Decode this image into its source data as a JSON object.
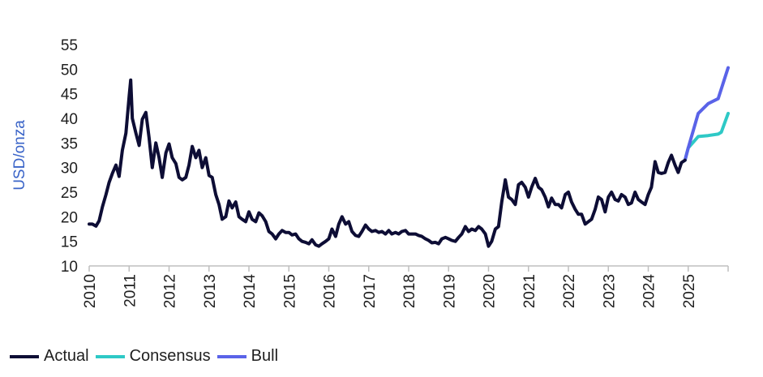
{
  "chart_data": {
    "type": "line",
    "title": "",
    "xlabel": "",
    "ylabel": "USD/onza",
    "ylim": [
      10,
      55
    ],
    "xlim": [
      2010,
      2026
    ],
    "yticks": [
      "10",
      "15",
      "20",
      "25",
      "30",
      "35",
      "40",
      "45",
      "50",
      "55"
    ],
    "xticks": [
      "2010",
      "2011",
      "2012",
      "2013",
      "2014",
      "2015",
      "2016",
      "2017",
      "2018",
      "2019",
      "2020",
      "2021",
      "2022",
      "2023",
      "2024",
      "2025"
    ],
    "colors": {
      "Actual": "#0d0d35",
      "Consensus": "#2ec9c6",
      "Bull": "#5a63e8",
      "ylabel": "#3a64c8",
      "axis": "#bfbfbf"
    },
    "series": [
      {
        "name": "Actual",
        "x": [
          2010.0,
          2010.08,
          2010.17,
          2010.25,
          2010.33,
          2010.42,
          2010.5,
          2010.58,
          2010.67,
          2010.75,
          2010.83,
          2010.92,
          2011.0,
          2011.04,
          2011.08,
          2011.17,
          2011.25,
          2011.33,
          2011.42,
          2011.5,
          2011.58,
          2011.67,
          2011.75,
          2011.83,
          2011.92,
          2012.0,
          2012.08,
          2012.17,
          2012.25,
          2012.33,
          2012.42,
          2012.5,
          2012.58,
          2012.67,
          2012.75,
          2012.83,
          2012.92,
          2013.0,
          2013.08,
          2013.17,
          2013.25,
          2013.33,
          2013.42,
          2013.5,
          2013.58,
          2013.67,
          2013.75,
          2013.83,
          2013.92,
          2014.0,
          2014.08,
          2014.17,
          2014.25,
          2014.33,
          2014.42,
          2014.5,
          2014.58,
          2014.67,
          2014.75,
          2014.83,
          2014.92,
          2015.0,
          2015.08,
          2015.17,
          2015.25,
          2015.33,
          2015.42,
          2015.5,
          2015.58,
          2015.67,
          2015.75,
          2015.83,
          2015.92,
          2016.0,
          2016.08,
          2016.17,
          2016.25,
          2016.33,
          2016.42,
          2016.5,
          2016.58,
          2016.67,
          2016.75,
          2016.83,
          2016.92,
          2017.0,
          2017.08,
          2017.17,
          2017.25,
          2017.33,
          2017.42,
          2017.5,
          2017.58,
          2017.67,
          2017.75,
          2017.83,
          2017.92,
          2018.0,
          2018.08,
          2018.17,
          2018.25,
          2018.33,
          2018.42,
          2018.5,
          2018.58,
          2018.67,
          2018.75,
          2018.83,
          2018.92,
          2019.0,
          2019.08,
          2019.17,
          2019.25,
          2019.33,
          2019.42,
          2019.5,
          2019.58,
          2019.67,
          2019.75,
          2019.83,
          2019.92,
          2020.0,
          2020.08,
          2020.17,
          2020.25,
          2020.33,
          2020.42,
          2020.5,
          2020.58,
          2020.67,
          2020.75,
          2020.83,
          2020.92,
          2021.0,
          2021.08,
          2021.17,
          2021.25,
          2021.33,
          2021.42,
          2021.5,
          2021.58,
          2021.67,
          2021.75,
          2021.83,
          2021.92,
          2022.0,
          2022.08,
          2022.17,
          2022.25,
          2022.33,
          2022.42,
          2022.5,
          2022.58,
          2022.67,
          2022.75,
          2022.83,
          2022.92,
          2023.0,
          2023.08,
          2023.17,
          2023.25,
          2023.33,
          2023.42,
          2023.5,
          2023.58,
          2023.67,
          2023.75,
          2023.83,
          2023.92,
          2024.0,
          2024.08,
          2024.17,
          2024.25,
          2024.33,
          2024.42,
          2024.5,
          2024.58,
          2024.67,
          2024.75,
          2024.83,
          2024.92
        ],
        "values": [
          18.5,
          18.5,
          18.1,
          19.2,
          22.0,
          24.5,
          27.0,
          28.8,
          30.5,
          28.2,
          33.5,
          37.0,
          44.5,
          47.8,
          40.0,
          37.0,
          34.5,
          39.8,
          41.2,
          36.0,
          30.0,
          35.0,
          32.0,
          28.0,
          33.0,
          34.8,
          32.0,
          30.8,
          28.0,
          27.5,
          28.0,
          30.5,
          34.3,
          32.0,
          33.5,
          30.0,
          32.0,
          28.4,
          28.0,
          24.5,
          22.5,
          19.5,
          20.0,
          23.2,
          21.8,
          23.0,
          20.0,
          19.5,
          19.0,
          21.0,
          19.5,
          19.0,
          20.8,
          20.2,
          19.0,
          17.0,
          16.5,
          15.5,
          16.5,
          17.2,
          16.8,
          16.8,
          16.3,
          16.5,
          15.5,
          15.0,
          14.8,
          14.5,
          15.3,
          14.3,
          14.0,
          14.5,
          15.0,
          15.5,
          17.5,
          16.0,
          18.5,
          20.0,
          18.5,
          19.0,
          17.0,
          16.2,
          16.0,
          17.0,
          18.3,
          17.5,
          17.0,
          17.2,
          16.8,
          17.0,
          16.5,
          17.2,
          16.5,
          16.8,
          16.5,
          17.0,
          17.2,
          16.5,
          16.5,
          16.5,
          16.2,
          16.0,
          15.5,
          15.2,
          14.7,
          14.8,
          14.5,
          15.5,
          15.8,
          15.5,
          15.2,
          15.0,
          15.8,
          16.5,
          18.0,
          17.0,
          17.5,
          17.2,
          18.0,
          17.5,
          16.5,
          14.0,
          15.0,
          17.5,
          18.0,
          23.0,
          27.5,
          24.0,
          23.5,
          22.5,
          26.5,
          27.0,
          26.0,
          24.0,
          26.0,
          27.8,
          26.0,
          25.5,
          24.0,
          22.0,
          23.8,
          22.5,
          22.5,
          21.8,
          24.5,
          25.0,
          23.0,
          21.5,
          20.5,
          20.5,
          18.5,
          19.0,
          19.5,
          21.5,
          24.0,
          23.5,
          21.0,
          24.0,
          25.0,
          23.5,
          23.2,
          24.5,
          24.0,
          22.5,
          22.8,
          25.0,
          23.5,
          23.0,
          22.5,
          24.5,
          26.0,
          31.2,
          29.0,
          28.8,
          29.0,
          31.0,
          32.5,
          30.5,
          29.0,
          31.0,
          31.5
        ]
      },
      {
        "name": "Consensus",
        "x": [
          2024.92,
          2025.0,
          2025.25,
          2025.5,
          2025.75,
          2025.83,
          2026.0
        ],
        "values": [
          31.5,
          34.0,
          36.3,
          36.5,
          36.8,
          37.2,
          41.0
        ]
      },
      {
        "name": "Bull",
        "x": [
          2024.92,
          2025.0,
          2025.25,
          2025.5,
          2025.75,
          2026.0
        ],
        "values": [
          31.5,
          34.0,
          41.0,
          43.0,
          44.0,
          50.3
        ]
      }
    ],
    "legend": [
      "Actual",
      "Consensus",
      "Bull"
    ],
    "legend_position": "bottom-left"
  }
}
